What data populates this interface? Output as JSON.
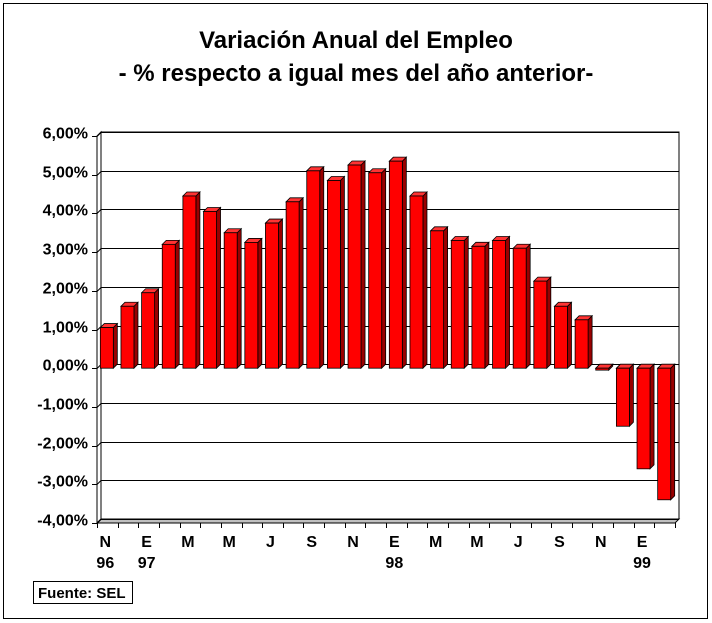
{
  "chart_data": {
    "type": "bar",
    "three_d": true,
    "title": "Variación Anual del Empleo",
    "subtitle": "- % respecto a igual mes del año anterior-",
    "xlabel": "",
    "ylabel": "",
    "ylim": [
      -4,
      6
    ],
    "y_ticks": [
      6,
      5,
      4,
      3,
      2,
      1,
      0,
      -1,
      -2,
      -3,
      -4
    ],
    "y_tick_labels": [
      "6,00%",
      "5,00%",
      "4,00%",
      "3,00%",
      "2,00%",
      "1,00%",
      "0,00%",
      "-1,00%",
      "-2,00%",
      "-3,00%",
      "-4,00%"
    ],
    "categories": [
      "N",
      "",
      "E",
      "",
      "M",
      "",
      "M",
      "",
      "J",
      "",
      "S",
      "",
      "N",
      "",
      "E",
      "",
      "M",
      "",
      "M",
      "",
      "J",
      "",
      "S",
      "",
      "N",
      "",
      "E",
      ""
    ],
    "category_years": [
      "96",
      "",
      "97",
      "",
      "",
      "",
      "",
      "",
      "",
      "",
      "",
      "",
      "",
      "",
      "98",
      "",
      "",
      "",
      "",
      "",
      "",
      "",
      "",
      "",
      "",
      "",
      "99",
      ""
    ],
    "values": [
      1.05,
      1.6,
      1.95,
      3.2,
      4.45,
      4.05,
      3.5,
      3.25,
      3.75,
      4.3,
      5.1,
      4.85,
      5.25,
      5.05,
      5.35,
      4.45,
      3.55,
      3.3,
      3.15,
      3.3,
      3.1,
      2.25,
      1.6,
      1.25,
      -0.05,
      -1.5,
      -2.6,
      -3.4
    ],
    "grid": true,
    "legend": "none",
    "colors": {
      "bar_front": "#ff0000",
      "bar_top": "#ff3333",
      "bar_side": "#990000",
      "floor": "#c0c0c0",
      "wall": "#ffffff",
      "gridline": "#000000"
    }
  },
  "source": {
    "label": "Fuente: SEL"
  }
}
